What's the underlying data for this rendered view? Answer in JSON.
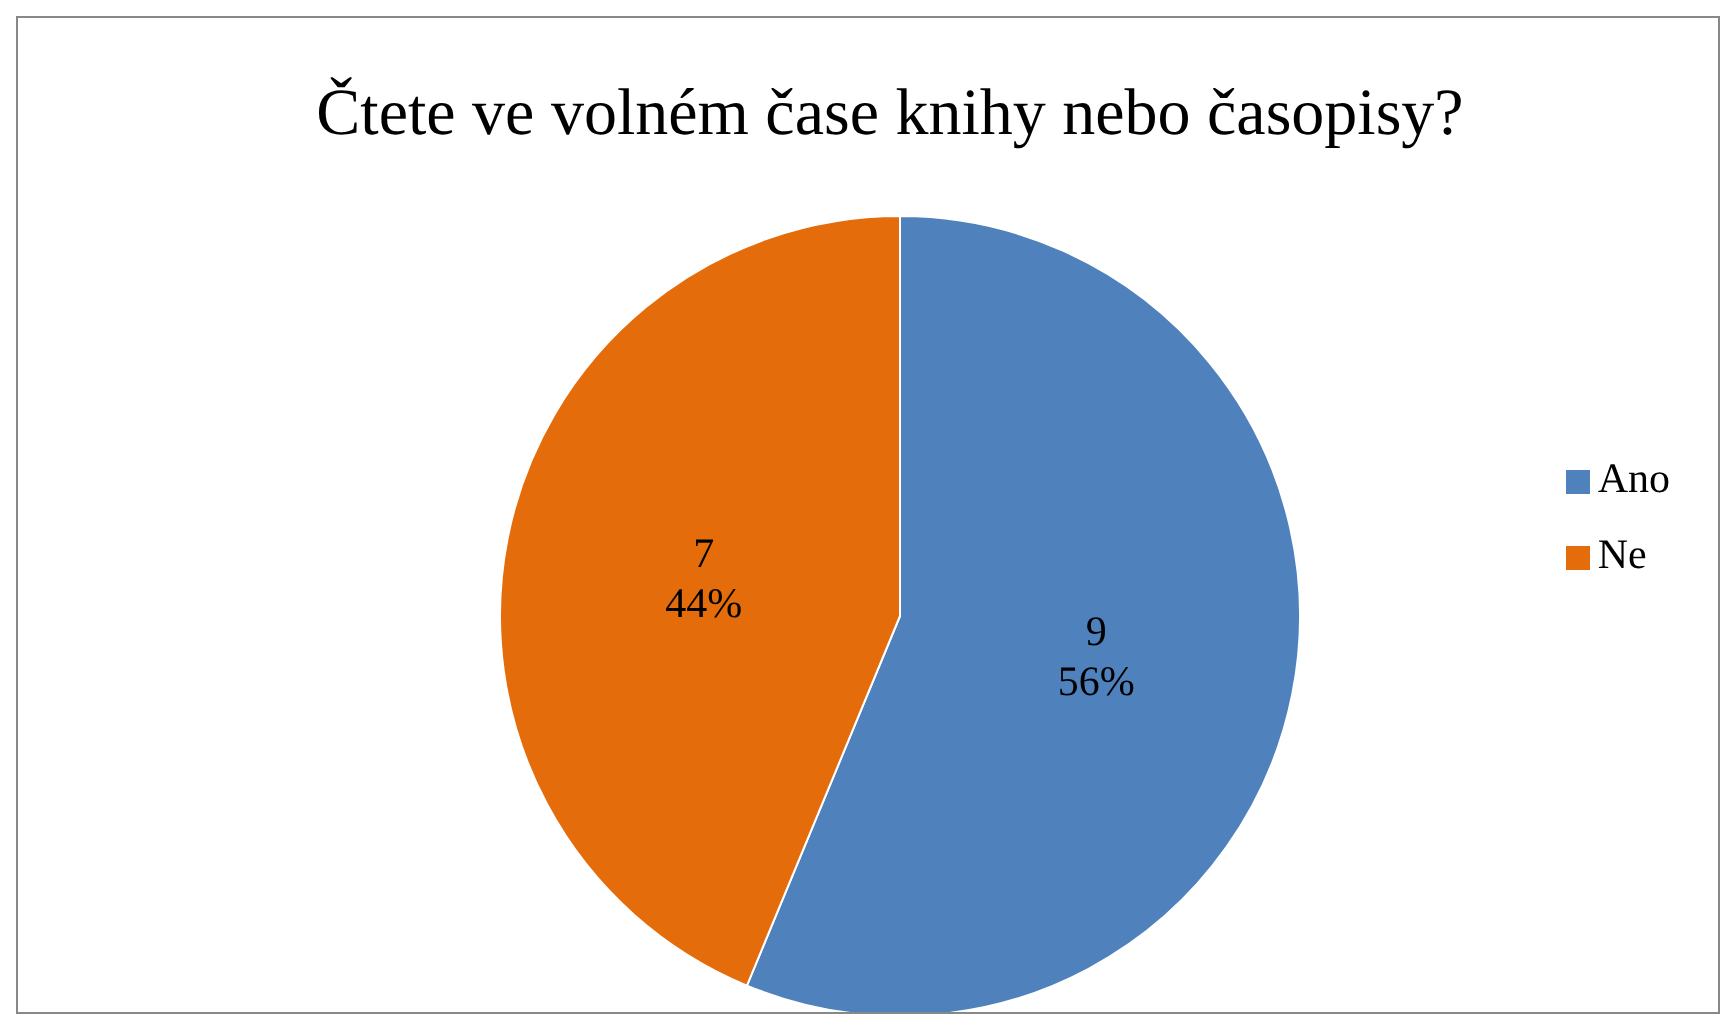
{
  "chart_data": {
    "type": "pie",
    "title": "Čtete ve volném čase knihy nebo časopisy?",
    "categories": [
      "Ano",
      "Ne"
    ],
    "values": [
      9,
      7
    ],
    "colors": [
      "#4f81bd",
      "#e46c0a"
    ],
    "value_labels": [
      "9\n56%",
      "7\n44%"
    ],
    "legend": "right"
  }
}
